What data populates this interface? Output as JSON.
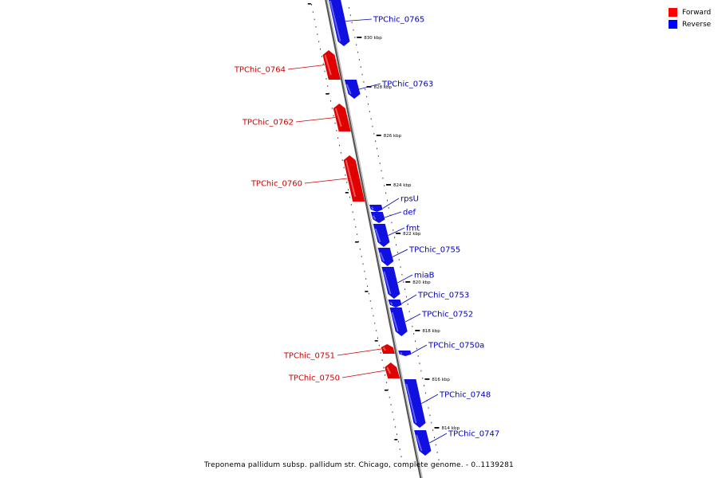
{
  "legend": {
    "forward": {
      "label": "Forward",
      "color": "#ff0000"
    },
    "reverse": {
      "label": "Reverse",
      "color": "#0000ff"
    }
  },
  "caption": "Treponema pallidum subsp. pallidum str. Chicago, complete genome. - 0..1139281",
  "colors": {
    "backbone": "#888888",
    "forward": "#e00000",
    "reverse": "#1010e0",
    "tick": "#000000"
  },
  "genes": [
    {
      "name": "TPChic_0765",
      "strand": "reverse"
    },
    {
      "name": "TPChic_0764",
      "strand": "forward"
    },
    {
      "name": "TPChic_0763",
      "strand": "reverse"
    },
    {
      "name": "TPChic_0762",
      "strand": "forward"
    },
    {
      "name": "TPChic_0760",
      "strand": "forward"
    },
    {
      "name": "rpsU",
      "strand": "reverse"
    },
    {
      "name": "def",
      "strand": "reverse"
    },
    {
      "name": "fmt",
      "strand": "reverse"
    },
    {
      "name": "TPChic_0755",
      "strand": "reverse"
    },
    {
      "name": "miaB",
      "strand": "reverse"
    },
    {
      "name": "TPChic_0753",
      "strand": "reverse"
    },
    {
      "name": "TPChic_0752",
      "strand": "reverse"
    },
    {
      "name": "TPChic_0751",
      "strand": "forward"
    },
    {
      "name": "TPChic_0750a",
      "strand": "reverse"
    },
    {
      "name": "TPChic_0750",
      "strand": "forward"
    },
    {
      "name": "TPChic_0748",
      "strand": "reverse"
    },
    {
      "name": "TPChic_0747",
      "strand": "reverse"
    }
  ],
  "scale_labels": [
    "830 kbp",
    "828 kbp",
    "826 kbp",
    "824 kbp",
    "822 kbp",
    "820 kbp",
    "818 kbp",
    "816 kbp",
    "814 kbp"
  ]
}
